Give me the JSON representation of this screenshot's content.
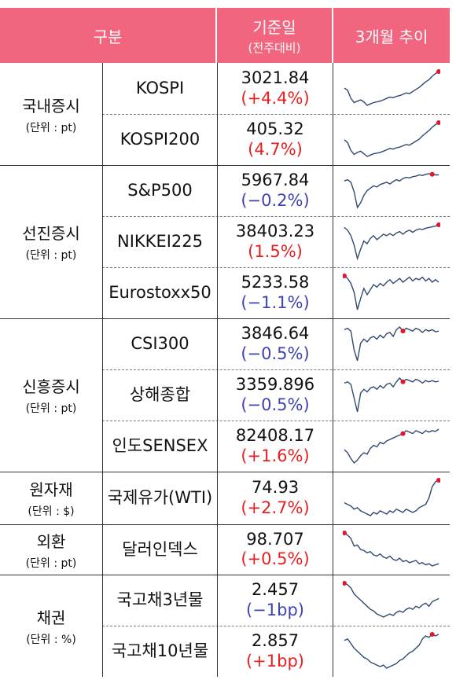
{
  "header": {
    "category": "구분",
    "base_date": "기준일",
    "base_date_sub": "(전주대비)",
    "trend": "3개월 추이"
  },
  "colors": {
    "header_bg": "#f2657f",
    "up": "#e81f1f",
    "down": "#3d42b4",
    "spark_line": "#2f4a6e",
    "spark_marker": "#e8132c"
  },
  "groups": [
    {
      "name": "국내증시",
      "unit": "(단위 : pt)",
      "rows": [
        {
          "name": "KOSPI",
          "value": "3021.84",
          "change": "(+4.4%)",
          "dir": "up",
          "marker": "end",
          "spark": [
            55,
            52,
            40,
            34,
            36,
            38,
            35,
            30,
            32,
            34,
            35,
            36,
            38,
            40,
            42,
            41,
            43,
            44,
            46,
            48,
            47,
            50,
            53,
            56,
            60,
            64,
            67,
            72,
            76,
            79
          ]
        },
        {
          "name": "KOSPI200",
          "value": "405.32",
          "change": "(4.7%)",
          "dir": "up",
          "marker": "end",
          "spark": [
            54,
            50,
            38,
            32,
            35,
            37,
            33,
            29,
            31,
            33,
            34,
            35,
            37,
            39,
            41,
            40,
            42,
            43,
            45,
            47,
            46,
            49,
            52,
            55,
            60,
            64,
            68,
            73,
            77,
            80
          ]
        }
      ]
    },
    {
      "name": "선진증시",
      "unit": "(단위 : pt)",
      "rows": [
        {
          "name": "S&P500",
          "value": "5967.84",
          "change": "(−0.2%)",
          "dir": "down",
          "marker": "near-end",
          "spark": [
            68,
            70,
            66,
            50,
            24,
            32,
            44,
            52,
            56,
            60,
            58,
            62,
            64,
            66,
            63,
            67,
            70,
            68,
            72,
            74,
            73,
            75,
            76,
            78,
            77,
            79,
            80,
            79,
            78,
            78
          ]
        },
        {
          "name": "NIKKEI225",
          "value": "38403.23",
          "change": "(1.5%)",
          "dir": "up",
          "marker": "end",
          "spark": [
            72,
            68,
            60,
            46,
            26,
            40,
            52,
            48,
            56,
            60,
            54,
            58,
            62,
            60,
            63,
            60,
            64,
            66,
            62,
            66,
            68,
            65,
            68,
            70,
            69,
            71,
            72,
            73,
            74,
            76
          ]
        },
        {
          "name": "Eurostoxx50",
          "value": "5233.58",
          "change": "(−1.1%)",
          "dir": "down",
          "marker": "start",
          "spark": [
            76,
            72,
            64,
            50,
            22,
            40,
            56,
            46,
            54,
            62,
            58,
            64,
            60,
            66,
            70,
            64,
            68,
            72,
            66,
            70,
            74,
            68,
            72,
            70,
            74,
            68,
            72,
            66,
            70,
            66
          ]
        }
      ]
    },
    {
      "name": "신흥증시",
      "unit": "(단위 : pt)",
      "rows": [
        {
          "name": "CSI300",
          "value": "3846.64",
          "change": "(−0.5%)",
          "dir": "down",
          "marker": "mid",
          "spark": [
            70,
            72,
            68,
            40,
            24,
            50,
            56,
            52,
            58,
            60,
            56,
            62,
            58,
            64,
            66,
            60,
            70,
            74,
            68,
            72,
            70,
            68,
            72,
            70,
            66,
            70,
            68,
            70,
            67,
            68
          ]
        },
        {
          "name": "상해종합",
          "value": "3359.896",
          "change": "(−0.5%)",
          "dir": "down",
          "marker": "mid",
          "spark": [
            68,
            70,
            66,
            44,
            22,
            52,
            58,
            54,
            60,
            62,
            58,
            64,
            60,
            66,
            68,
            62,
            70,
            76,
            70,
            74,
            72,
            70,
            74,
            72,
            68,
            72,
            70,
            72,
            70,
            71
          ]
        },
        {
          "name": "인도SENSEX",
          "value": "82408.17",
          "change": "(+1.6%)",
          "dir": "up",
          "marker": "mid",
          "spark": [
            48,
            44,
            36,
            30,
            34,
            40,
            44,
            42,
            50,
            54,
            52,
            58,
            56,
            60,
            62,
            64,
            66,
            68,
            70,
            74,
            72,
            70,
            74,
            72,
            70,
            74,
            72,
            74,
            73,
            76
          ]
        }
      ]
    },
    {
      "name": "원자재",
      "unit": "(단위 : $)",
      "rows": [
        {
          "name": "국제유가\n(WTI)",
          "value": "74.93",
          "change": "(+2.7%)",
          "dir": "up",
          "marker": "end",
          "spark": [
            50,
            48,
            46,
            42,
            44,
            40,
            38,
            36,
            34,
            38,
            36,
            40,
            38,
            36,
            40,
            38,
            42,
            40,
            38,
            42,
            40,
            38,
            40,
            44,
            46,
            48,
            56,
            70,
            76,
            78
          ]
        }
      ]
    },
    {
      "name": "외환",
      "unit": "(단위 : pt)",
      "rows": [
        {
          "name": "달러인덱스",
          "value": "98.707",
          "change": "(+0.5%)",
          "dir": "up",
          "marker": "start",
          "spark": [
            80,
            76,
            70,
            56,
            58,
            50,
            48,
            44,
            46,
            40,
            38,
            42,
            36,
            34,
            38,
            32,
            30,
            34,
            28,
            30,
            26,
            28,
            30,
            24,
            26,
            22,
            24,
            20,
            22,
            24
          ]
        }
      ]
    },
    {
      "name": "채권",
      "unit": "(단위 : %)",
      "rows": [
        {
          "name": "국고채3년물",
          "value": "2.457",
          "change": "(−1bp)",
          "dir": "down",
          "marker": "start",
          "spark": [
            78,
            76,
            72,
            64,
            60,
            56,
            52,
            48,
            44,
            42,
            38,
            36,
            34,
            36,
            38,
            36,
            40,
            42,
            40,
            44,
            46,
            44,
            48,
            46,
            50,
            52,
            48,
            54,
            56,
            58
          ]
        },
        {
          "name": "국고채10년물",
          "value": "2.857",
          "change": "(+1bp)",
          "dir": "up",
          "marker": "near-end",
          "spark": [
            60,
            62,
            56,
            50,
            46,
            42,
            38,
            36,
            32,
            30,
            28,
            26,
            28,
            24,
            26,
            28,
            30,
            34,
            36,
            40,
            44,
            46,
            50,
            54,
            62,
            66,
            64,
            68,
            66,
            68
          ]
        }
      ]
    }
  ]
}
